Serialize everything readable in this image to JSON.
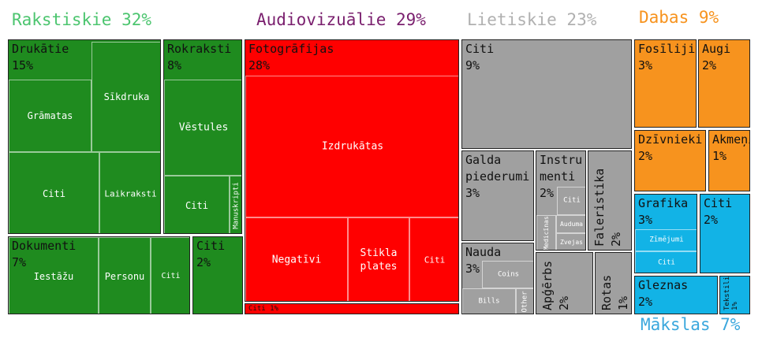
{
  "chart_data": {
    "type": "treemap",
    "groups": [
      {
        "name": "Rakstiskie",
        "label": "Rakstiskie 32%",
        "value": 32,
        "color": "#1f8b1f",
        "header_color": "#4cc56f"
      },
      {
        "name": "Audiovizuālie",
        "label": "Audiovizuālie 29%",
        "value": 29,
        "color": "#ff0000",
        "header_color": "#7a1f6e"
      },
      {
        "name": "Lietiskie",
        "label": "Lietiskie 23%",
        "value": 23,
        "color": "#a0a0a0",
        "header_color": "#b0b0b0"
      },
      {
        "name": "Dabas",
        "label": "Dabas 9%",
        "value": 9,
        "color": "#f7931e",
        "header_color": "#f7931e"
      },
      {
        "name": "Mākslas",
        "label": "Mākslas 7%",
        "value": 7,
        "color": "#12b3e6",
        "header_color": "#3aa7dd"
      }
    ],
    "categories": [
      {
        "group": "Rakstiskie",
        "name": "Drukātie",
        "value": 15,
        "label": "Drukātie\n15%",
        "subs": [
          "Grāmatas",
          "Sīkdruka",
          "Citi",
          "Laikraksti"
        ]
      },
      {
        "group": "Rakstiskie",
        "name": "Rokraksti",
        "value": 8,
        "label": "Rokraksti\n8%",
        "subs": [
          "Vēstules",
          "Citi",
          "Manuskripti"
        ]
      },
      {
        "group": "Rakstiskie",
        "name": "Dokumenti",
        "value": 7,
        "label": "Dokumenti\n7%",
        "subs": [
          "Iestāžu",
          "Personu",
          "Citi"
        ]
      },
      {
        "group": "Rakstiskie",
        "name": "Citi",
        "value": 2,
        "label": "Citi\n2%",
        "subs": []
      },
      {
        "group": "Audiovizuālie",
        "name": "Fotogrāfijas",
        "value": 28,
        "label": "Fotogrāfijas\n28%",
        "subs": [
          "Izdrukātas",
          "Negatīvi",
          "Stikla\nplates",
          "Citi"
        ]
      },
      {
        "group": "Audiovizuālie",
        "name": "Citi",
        "value": 1,
        "label": "Citi 1%",
        "subs": []
      },
      {
        "group": "Lietiskie",
        "name": "Citi",
        "value": 9,
        "label": "Citi\n9%",
        "subs": []
      },
      {
        "group": "Lietiskie",
        "name": "Galda piederumi",
        "value": 3,
        "label": "Galda\npiederumi\n3%",
        "subs": []
      },
      {
        "group": "Lietiskie",
        "name": "Instrumenti",
        "value": 2,
        "label": "Instru\nmenti\n2%",
        "subs": [
          "Citi",
          "Medicīnas",
          "Auduma",
          "Zvejas"
        ]
      },
      {
        "group": "Lietiskie",
        "name": "Faleristika",
        "value": 2,
        "label": "Faleristika\n2%",
        "subs": []
      },
      {
        "group": "Lietiskie",
        "name": "Nauda",
        "value": 3,
        "label": "Nauda\n3%",
        "subs": [
          "Coins",
          "Bills",
          "Other"
        ]
      },
      {
        "group": "Lietiskie",
        "name": "Apģērbs",
        "value": 2,
        "label": "Apģērbs\n2%",
        "subs": []
      },
      {
        "group": "Lietiskie",
        "name": "Rotas",
        "value": 1,
        "label": "Rotas\n1%",
        "subs": []
      },
      {
        "group": "Dabas",
        "name": "Fosīliji",
        "value": 3,
        "label": "Fosīliji\n3%",
        "subs": []
      },
      {
        "group": "Dabas",
        "name": "Augi",
        "value": 2,
        "label": "Augi\n2%",
        "subs": []
      },
      {
        "group": "Dabas",
        "name": "Dzīvnieki",
        "value": 2,
        "label": "Dzīvnieki\n2%",
        "subs": []
      },
      {
        "group": "Dabas",
        "name": "Akmeņi",
        "value": 1,
        "label": "Akmeņi\n1%",
        "subs": []
      },
      {
        "group": "Mākslas",
        "name": "Grafika",
        "value": 3,
        "label": "Grafika\n3%",
        "subs": [
          "Zīmējumi",
          "Citi"
        ]
      },
      {
        "group": "Mākslas",
        "name": "Citi",
        "value": 2,
        "label": "Citi\n2%",
        "subs": []
      },
      {
        "group": "Mākslas",
        "name": "Gleznas",
        "value": 2,
        "label": "Gleznas\n2%",
        "subs": []
      },
      {
        "group": "Mākslas",
        "name": "Tekstilija",
        "value": 1,
        "label": "Tekstilija\n1%",
        "subs": []
      }
    ]
  }
}
